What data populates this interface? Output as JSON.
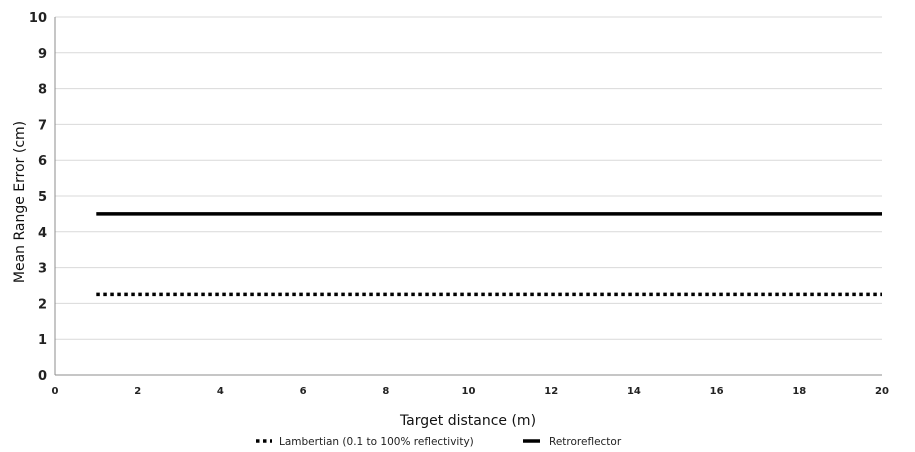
{
  "chart_data": {
    "type": "line",
    "title": "",
    "xlabel": "Target distance (m)",
    "ylabel": "Mean Range Error (cm)",
    "xlim": [
      0,
      20
    ],
    "ylim": [
      0,
      10
    ],
    "x_ticks": [
      0,
      2,
      4,
      6,
      8,
      10,
      12,
      14,
      16,
      18,
      20
    ],
    "y_ticks": [
      0,
      1,
      2,
      3,
      4,
      5,
      6,
      7,
      8,
      9,
      10
    ],
    "grid": "horizontal",
    "legend_position": "bottom-center",
    "series": [
      {
        "name": "Lambertian (0.1 to 100% reflectivity)",
        "style": "dotted",
        "color": "#000000",
        "x": [
          1,
          20
        ],
        "y": [
          2.25,
          2.25
        ]
      },
      {
        "name": "Retroreflector",
        "style": "solid",
        "color": "#000000",
        "x": [
          1,
          20
        ],
        "y": [
          4.5,
          4.5
        ]
      }
    ]
  }
}
